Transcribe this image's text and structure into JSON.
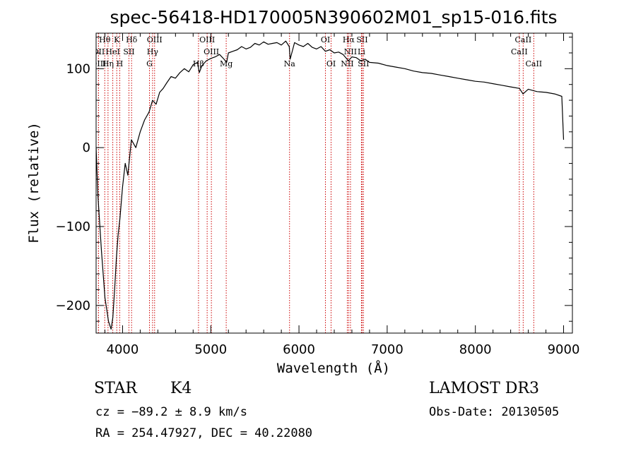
{
  "chart_data": {
    "type": "line",
    "title": "spec-56418-HD170005N390602M01_sp15-016.fits",
    "xlabel": "Wavelength (Å)",
    "ylabel": "Flux (relative)",
    "xlim": [
      3700,
      9100
    ],
    "ylim": [
      -235,
      145
    ],
    "xticks": [
      4000,
      5000,
      6000,
      7000,
      8000,
      9000
    ],
    "xtick_labels": [
      "4000",
      "5000",
      "6000",
      "7000",
      "8000",
      "9000"
    ],
    "yticks": [
      -200,
      -100,
      0,
      100
    ],
    "ytick_labels": [
      "−200",
      "−100",
      "0",
      "100"
    ],
    "grid": false,
    "series": [
      {
        "name": "flux",
        "color": "#000000",
        "x": [
          3700,
          3720,
          3760,
          3800,
          3840,
          3870,
          3890,
          3910,
          3930,
          3950,
          3970,
          4000,
          4030,
          4060,
          4100,
          4150,
          4200,
          4250,
          4300,
          4340,
          4380,
          4420,
          4460,
          4500,
          4550,
          4600,
          4650,
          4700,
          4750,
          4800,
          4850,
          4870,
          4900,
          4950,
          5000,
          5050,
          5100,
          5150,
          5180,
          5200,
          5250,
          5300,
          5350,
          5400,
          5450,
          5500,
          5550,
          5600,
          5650,
          5700,
          5750,
          5800,
          5850,
          5890,
          5900,
          5950,
          6000,
          6050,
          6100,
          6150,
          6200,
          6250,
          6300,
          6350,
          6400,
          6450,
          6500,
          6560,
          6600,
          6650,
          6700,
          6750,
          6800,
          6900,
          7000,
          7100,
          7200,
          7300,
          7400,
          7500,
          7600,
          7700,
          7800,
          7900,
          8000,
          8100,
          8200,
          8300,
          8400,
          8500,
          8540,
          8600,
          8660,
          8700,
          8800,
          8900,
          8980,
          9000
        ],
        "y": [
          0,
          -60,
          -130,
          -190,
          -220,
          -230,
          -215,
          -180,
          -140,
          -110,
          -90,
          -50,
          -20,
          -35,
          10,
          0,
          20,
          35,
          45,
          60,
          55,
          70,
          75,
          82,
          90,
          88,
          95,
          100,
          96,
          105,
          108,
          95,
          104,
          110,
          113,
          115,
          118,
          112,
          108,
          120,
          122,
          124,
          128,
          125,
          127,
          132,
          130,
          134,
          131,
          132,
          133,
          130,
          135,
          128,
          112,
          133,
          130,
          128,
          132,
          127,
          125,
          128,
          122,
          124,
          120,
          121,
          118,
          110,
          115,
          114,
          110,
          112,
          108,
          107,
          104,
          102,
          100,
          97,
          95,
          94,
          92,
          90,
          88,
          86,
          84,
          83,
          81,
          79,
          77,
          75,
          68,
          74,
          72,
          71,
          70,
          68,
          65,
          10
        ]
      }
    ],
    "lines": [
      {
        "label": "Hθ",
        "wave": 3798,
        "row": 0
      },
      {
        "label": "K",
        "wave": 3934,
        "row": 0
      },
      {
        "label": "Hδ",
        "wave": 4102,
        "row": 0
      },
      {
        "label": "OIII",
        "wave": 4363,
        "row": 0
      },
      {
        "label": "OIII",
        "wave": 4959,
        "row": 0
      },
      {
        "label": "OI",
        "wave": 6300,
        "row": 0
      },
      {
        "label": "Hα",
        "wave": 6563,
        "row": 0
      },
      {
        "label": "SII",
        "wave": 6716,
        "row": 0
      },
      {
        "label": "CaII",
        "wave": 8542,
        "row": 0
      },
      {
        "label": "OII",
        "wave": 3727,
        "row": 1
      },
      {
        "label": "HeI",
        "wave": 3889,
        "row": 1
      },
      {
        "label": "SII",
        "wave": 4072,
        "row": 1
      },
      {
        "label": "Hγ",
        "wave": 4340,
        "row": 1
      },
      {
        "label": "OIII",
        "wave": 5007,
        "row": 1
      },
      {
        "label": "NII",
        "wave": 6584,
        "row": 1
      },
      {
        "label": "Li",
        "wave": 6708,
        "row": 1
      },
      {
        "label": "CaII",
        "wave": 8498,
        "row": 1
      },
      {
        "label": "OIII",
        "wave": 3727,
        "row": 2
      },
      {
        "label": "Hη",
        "wave": 3835,
        "row": 2
      },
      {
        "label": "H",
        "wave": 3968,
        "row": 2
      },
      {
        "label": "G",
        "wave": 4305,
        "row": 2
      },
      {
        "label": "Hβ",
        "wave": 4861,
        "row": 2
      },
      {
        "label": "Mg",
        "wave": 5175,
        "row": 2
      },
      {
        "label": "Na",
        "wave": 5893,
        "row": 2
      },
      {
        "label": "OI",
        "wave": 6364,
        "row": 2
      },
      {
        "label": "NII",
        "wave": 6548,
        "row": 2
      },
      {
        "label": "SII",
        "wave": 6731,
        "row": 2
      },
      {
        "label": "CaII",
        "wave": 8662,
        "row": 2
      }
    ]
  },
  "info": {
    "obj_class": "STAR",
    "obj_subclass": "K4",
    "survey": "LAMOST DR3",
    "redshift_text": "cz = −89.2 ± 8.9 km/s",
    "obs_date": "Obs-Date: 20130505",
    "coords": "RA = 254.47927, DEC =  40.22080"
  }
}
